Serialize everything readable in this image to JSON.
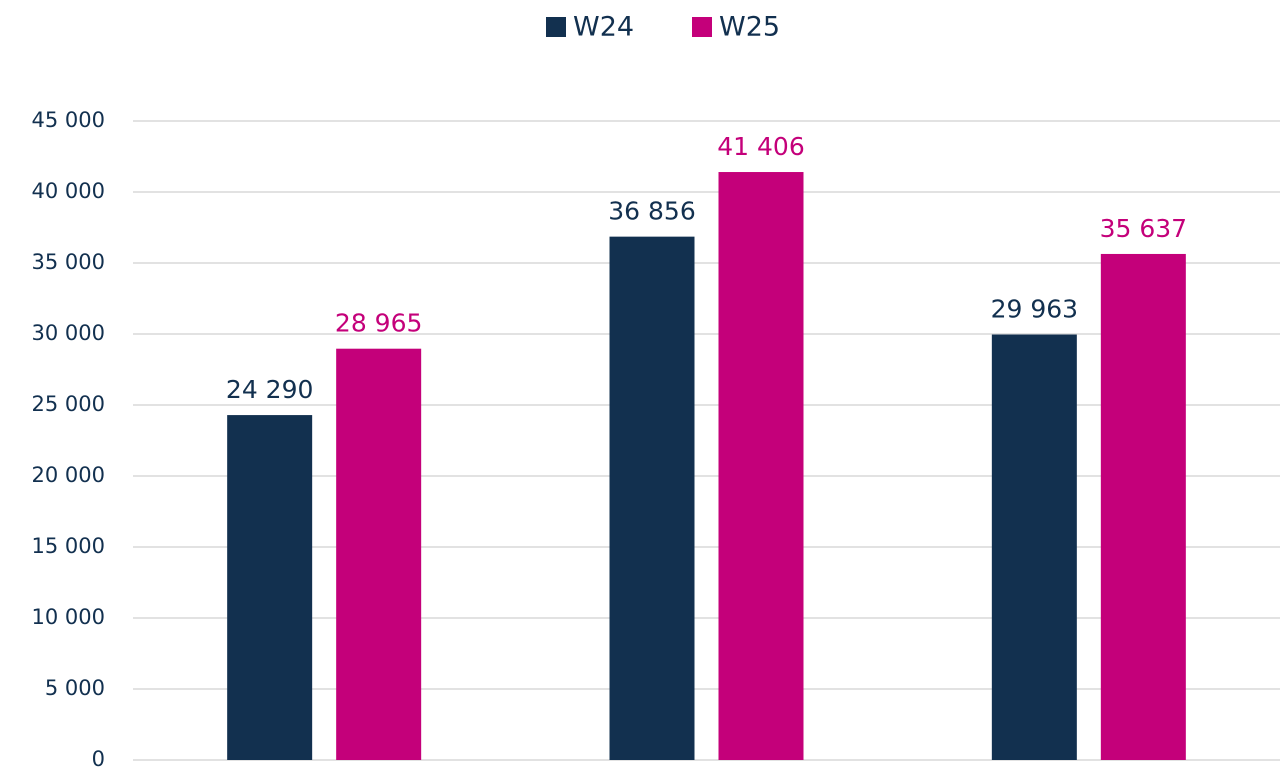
{
  "chart_data": {
    "type": "bar",
    "categories": [
      null,
      null,
      null
    ],
    "series": [
      {
        "name": "W24",
        "color": "#12304f",
        "values": [
          24290,
          36856,
          29963
        ],
        "value_labels": [
          "24 290",
          "36 856",
          "29 963"
        ]
      },
      {
        "name": "W25",
        "color": "#c4007a",
        "values": [
          28965,
          41406,
          35637
        ],
        "value_labels": [
          "28 965",
          "41 406",
          "35 637"
        ]
      }
    ],
    "ylim": [
      0,
      45000
    ],
    "yticks": [
      0,
      {
        "value": 5000,
        "label": "5 000"
      },
      {
        "value": 10000,
        "label": "10 000"
      },
      {
        "value": 15000,
        "label": "15 000"
      },
      {
        "value": 20000,
        "label": "20 000"
      },
      {
        "value": 25000,
        "label": "25 000"
      },
      {
        "value": 30000,
        "label": "30 000"
      },
      {
        "value": 35000,
        "label": "35 000"
      },
      {
        "value": 40000,
        "label": "40 000"
      },
      {
        "value": 45000,
        "label": "45 000"
      }
    ],
    "grid": true,
    "legend": "top"
  }
}
